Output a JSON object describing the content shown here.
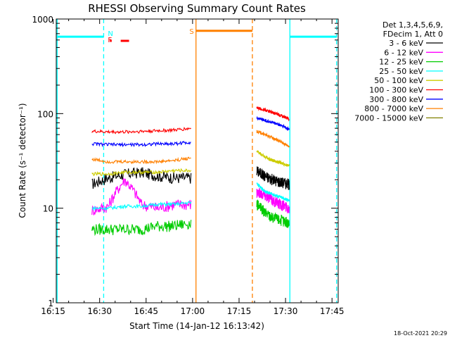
{
  "chart_data": {
    "type": "line",
    "title": "RHESSI Observing Summary Count Rates",
    "xlabel": "Start Time (14-Jan-12 16:13:42)",
    "ylabel": "Count Rate (s⁻¹ detector⁻¹)",
    "ylog": true,
    "ylim": [
      1,
      1000
    ],
    "xlim_minutes": [
      16.0,
      107.0
    ],
    "xtick_labels": [
      "16:15",
      "16:30",
      "16:45",
      "17:00",
      "17:15",
      "17:30",
      "17:45"
    ],
    "xtick_minutes": [
      15,
      30,
      45,
      60,
      75,
      90,
      105
    ],
    "ytick_labels": [
      "1",
      "10",
      "100",
      "1000"
    ],
    "ytick_values": [
      1,
      10,
      100,
      1000
    ],
    "legend_header": [
      "Det 1,3,4,5,6,9,",
      "FDecim 1, Att 0"
    ],
    "timestamp": "18-Oct-2021 20:29",
    "series": [
      {
        "name": "3 - 6 keV",
        "color": "#000000",
        "seg1": [
          18,
          21,
          23,
          24,
          22,
          21,
          21
        ],
        "seg2": [
          25,
          22,
          20,
          19,
          18
        ]
      },
      {
        "name": "6 - 12 keV",
        "color": "#ff00ff",
        "seg1": [
          9.5,
          10.5,
          20,
          11,
          10,
          11,
          11
        ],
        "seg2": [
          15,
          14,
          12,
          11,
          10
        ]
      },
      {
        "name": "12 - 25 keV",
        "color": "#00cc00",
        "seg1": [
          6,
          6,
          6,
          6,
          6.5,
          6.5,
          7
        ],
        "seg2": [
          11,
          9,
          8,
          7.5,
          7
        ]
      },
      {
        "name": "25 - 50 keV",
        "color": "#00ffff",
        "seg1": [
          10,
          10,
          10.5,
          10.5,
          11,
          11,
          11.5
        ],
        "seg2": [
          18,
          15,
          14,
          13,
          12
        ]
      },
      {
        "name": "50 - 100 keV",
        "color": "#cccc00",
        "seg1": [
          23,
          23,
          24,
          24,
          24,
          25,
          25
        ],
        "seg2": [
          40,
          35,
          32,
          30,
          28
        ]
      },
      {
        "name": "100 - 300 keV",
        "color": "#ff0000",
        "seg1": [
          65,
          64,
          64,
          65,
          66,
          67,
          70
        ],
        "seg2": [
          115,
          110,
          102,
          95,
          88
        ]
      },
      {
        "name": "300 - 800 keV",
        "color": "#0000ff",
        "seg1": [
          48,
          47,
          47,
          47,
          48,
          48,
          50
        ],
        "seg2": [
          90,
          85,
          80,
          75,
          68
        ]
      },
      {
        "name": "800 - 7000 keV",
        "color": "#ff8000",
        "seg1": [
          33,
          31,
          31,
          31,
          31,
          32,
          34
        ],
        "seg2": [
          65,
          60,
          55,
          50,
          45
        ]
      },
      {
        "name": "7000 - 15000 keV",
        "color": "#808000",
        "seg1": [],
        "seg2": []
      }
    ],
    "seg1_minutes": [
      27.5,
      59.5
    ],
    "seg2_minutes": [
      80.7,
      91.2
    ],
    "bars": [
      {
        "label": "",
        "color": "#00ffff",
        "start": 16.3,
        "end": 31.3,
        "level": 650
      },
      {
        "label": "",
        "color": "#00ffff",
        "start": 91.4,
        "end": 106.5,
        "level": 650
      },
      {
        "label": "S",
        "color": "#ff8000",
        "start": 61.1,
        "end": 79.3,
        "level": 750
      }
    ],
    "markers": [
      {
        "label": "N",
        "color": "#00ffff",
        "minute": 31.3
      },
      {
        "label": "F",
        "color": "#ff0000",
        "minute": 31.3
      }
    ],
    "flare_ticks": [
      {
        "start": 33.3,
        "end": 33.9
      },
      {
        "start": 36.8,
        "end": 39.5
      }
    ],
    "vlines": [
      {
        "minute": 16.3,
        "color": "#00ffff",
        "dashed": false
      },
      {
        "minute": 31.3,
        "color": "#00ffff",
        "dashed": true
      },
      {
        "minute": 61.1,
        "color": "#ff8000",
        "dashed": false
      },
      {
        "minute": 79.3,
        "color": "#ff8000",
        "dashed": true
      },
      {
        "minute": 91.4,
        "color": "#00ffff",
        "dashed": false
      },
      {
        "minute": 106.5,
        "color": "#00ffff",
        "dashed": true
      }
    ]
  }
}
